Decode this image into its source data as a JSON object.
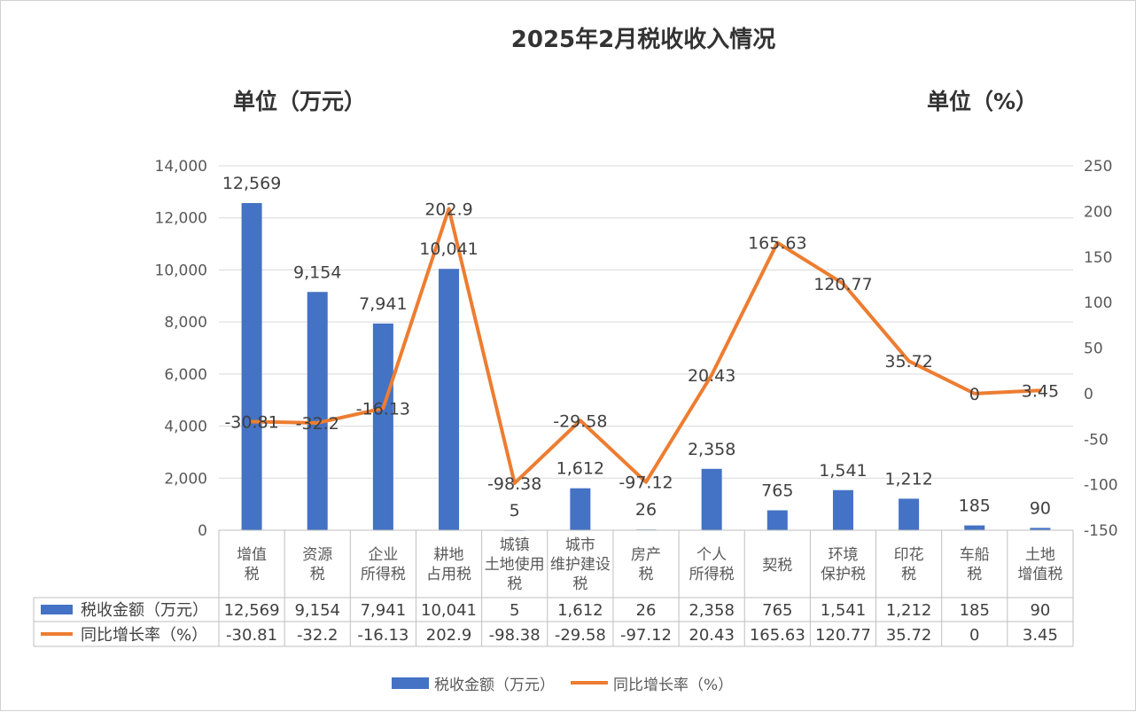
{
  "chart_data": {
    "type": "bar",
    "title": "2025年2月税收收入情况",
    "left_unit": "单位（万元）",
    "right_unit": "单位（%）",
    "categories": [
      [
        "增值",
        "税"
      ],
      [
        "资源",
        "税"
      ],
      [
        "企业",
        "所得税"
      ],
      [
        "耕地",
        "占用税"
      ],
      [
        "城镇",
        "土地使用",
        "税"
      ],
      [
        "城市",
        "维护建设",
        "税"
      ],
      [
        "房产",
        "税"
      ],
      [
        "个人",
        "所得税"
      ],
      [
        "契税"
      ],
      [
        "环境",
        "保护税"
      ],
      [
        "印花",
        "税"
      ],
      [
        "车船",
        "税"
      ],
      [
        "土地",
        "增值税"
      ]
    ],
    "series": [
      {
        "name": "税收金额（万元）",
        "kind": "bar",
        "axis": "left",
        "color": "#4472C4",
        "values": [
          12569,
          9154,
          7941,
          10041,
          5,
          1612,
          26,
          2358,
          765,
          1541,
          1212,
          185,
          90
        ],
        "labels": [
          "12,569",
          "9,154",
          "7,941",
          "10,041",
          "5",
          "1,612",
          "26",
          "2,358",
          "765",
          "1,541",
          "1,212",
          "185",
          "90"
        ]
      },
      {
        "name": "同比增长率（%）",
        "kind": "line",
        "axis": "right",
        "color": "#ED7D31",
        "values": [
          -30.81,
          -32.2,
          -16.13,
          202.9,
          -98.38,
          -29.58,
          -97.12,
          20.43,
          165.63,
          120.77,
          35.72,
          0,
          3.45
        ],
        "labels": [
          "-30.81",
          "-32.2",
          "-16.13",
          "202.9",
          "-98.38",
          "-29.58",
          "-97.12",
          "20.43",
          "165.63",
          "120.77",
          "35.72",
          "0",
          "3.45"
        ]
      }
    ],
    "y_left": {
      "min": 0,
      "max": 14000,
      "ticks": [
        "0",
        "2,000",
        "4,000",
        "6,000",
        "8,000",
        "10,000",
        "12,000",
        "14,000"
      ]
    },
    "y_right": {
      "min": -150,
      "max": 250,
      "ticks": [
        "-150",
        "-100",
        "-50",
        "0",
        "50",
        "100",
        "150",
        "200",
        "250"
      ]
    },
    "grid": true,
    "data_table": true,
    "legend_position": "bottom"
  }
}
